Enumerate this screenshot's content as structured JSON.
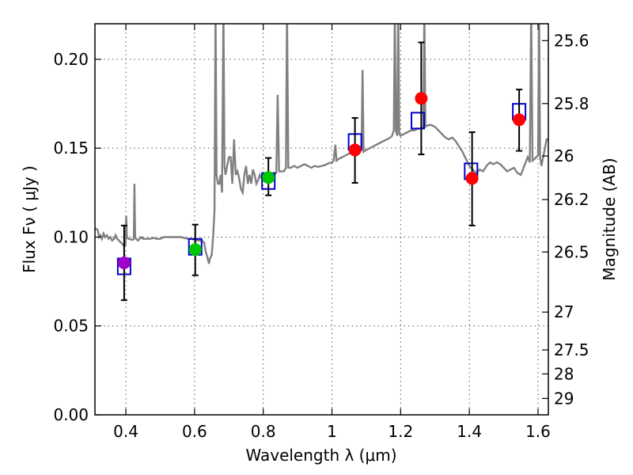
{
  "chart_data": {
    "type": "scatter",
    "xlabel": "Wavelength  λ (μm)",
    "ylabel_left": "Flux  Fν  ( μJy )",
    "ylabel_right": "Magnitude (AB)",
    "xlim": [
      0.31,
      1.63
    ],
    "ylim": [
      0.0,
      0.22
    ],
    "grid": true,
    "x_ticks": [
      {
        "value": 0.4,
        "label": "0.4"
      },
      {
        "value": 0.6,
        "label": "0.6"
      },
      {
        "value": 0.8,
        "label": "0.8"
      },
      {
        "value": 1.0,
        "label": "1"
      },
      {
        "value": 1.2,
        "label": "1.2"
      },
      {
        "value": 1.4,
        "label": "1.4"
      },
      {
        "value": 1.6,
        "label": "1.6"
      }
    ],
    "y_ticks": [
      {
        "value": 0.0,
        "label": "0.00"
      },
      {
        "value": 0.05,
        "label": "0.05"
      },
      {
        "value": 0.1,
        "label": "0.10"
      },
      {
        "value": 0.15,
        "label": "0.15"
      },
      {
        "value": 0.2,
        "label": "0.20"
      }
    ],
    "mag_ticks": [
      {
        "value": 0.2105,
        "label": "25.6"
      },
      {
        "value": 0.1751,
        "label": "25.8"
      },
      {
        "value": 0.1456,
        "label": "26"
      },
      {
        "value": 0.1211,
        "label": "26.2"
      },
      {
        "value": 0.0916,
        "label": "26.5"
      },
      {
        "value": 0.0578,
        "label": "27"
      },
      {
        "value": 0.0365,
        "label": "27.5"
      },
      {
        "value": 0.023,
        "label": "28"
      },
      {
        "value": 0.0092,
        "label": "29"
      }
    ],
    "observed": [
      {
        "x": 0.395,
        "y": 0.0855,
        "yerr_low": 0.0645,
        "yerr_high": 0.1065,
        "color": "#a000c8"
      },
      {
        "x": 0.602,
        "y": 0.093,
        "yerr_low": 0.0785,
        "yerr_high": 0.107,
        "color": "#00c800"
      },
      {
        "x": 0.815,
        "y": 0.1335,
        "yerr_low": 0.1235,
        "yerr_high": 0.1445,
        "color": "#00c800"
      },
      {
        "x": 1.067,
        "y": 0.149,
        "yerr_low": 0.1305,
        "yerr_high": 0.167,
        "color": "#ff0000"
      },
      {
        "x": 1.26,
        "y": 0.178,
        "yerr_low": 0.1465,
        "yerr_high": 0.2095,
        "color": "#ff0000"
      },
      {
        "x": 1.408,
        "y": 0.133,
        "yerr_low": 0.1065,
        "yerr_high": 0.159,
        "color": "#ff0000"
      },
      {
        "x": 1.545,
        "y": 0.166,
        "yerr_low": 0.1485,
        "yerr_high": 0.183,
        "color": "#ff0000"
      }
    ],
    "model_photometry": [
      {
        "x": 0.395,
        "y": 0.0835
      },
      {
        "x": 0.602,
        "y": 0.0945
      },
      {
        "x": 0.815,
        "y": 0.1315
      },
      {
        "x": 1.067,
        "y": 0.1535
      },
      {
        "x": 1.25,
        "y": 0.1655
      },
      {
        "x": 1.405,
        "y": 0.137
      },
      {
        "x": 1.545,
        "y": 0.1705
      }
    ],
    "spectrum": [
      [
        0.31,
        0.105
      ],
      [
        0.318,
        0.104
      ],
      [
        0.322,
        0.1
      ],
      [
        0.326,
        0.101
      ],
      [
        0.33,
        0.099
      ],
      [
        0.335,
        0.102
      ],
      [
        0.34,
        0.1
      ],
      [
        0.345,
        0.101
      ],
      [
        0.35,
        0.099
      ],
      [
        0.355,
        0.1
      ],
      [
        0.36,
        0.098
      ],
      [
        0.366,
        0.099
      ],
      [
        0.37,
        0.101
      ],
      [
        0.375,
        0.099
      ],
      [
        0.38,
        0.098
      ],
      [
        0.385,
        0.097
      ],
      [
        0.39,
        0.096
      ],
      [
        0.395,
        0.095
      ],
      [
        0.399,
        0.0955
      ],
      [
        0.401,
        0.112
      ],
      [
        0.403,
        0.1
      ],
      [
        0.407,
        0.099
      ],
      [
        0.41,
        0.099
      ],
      [
        0.415,
        0.0985
      ],
      [
        0.42,
        0.0985
      ],
      [
        0.423,
        0.099
      ],
      [
        0.425,
        0.13
      ],
      [
        0.427,
        0.1
      ],
      [
        0.43,
        0.099
      ],
      [
        0.435,
        0.098
      ],
      [
        0.44,
        0.099
      ],
      [
        0.445,
        0.1
      ],
      [
        0.45,
        0.099
      ],
      [
        0.46,
        0.099
      ],
      [
        0.47,
        0.099
      ],
      [
        0.48,
        0.0995
      ],
      [
        0.49,
        0.099
      ],
      [
        0.5,
        0.099
      ],
      [
        0.51,
        0.1
      ],
      [
        0.52,
        0.1
      ],
      [
        0.53,
        0.1
      ],
      [
        0.54,
        0.1
      ],
      [
        0.55,
        0.1
      ],
      [
        0.56,
        0.1
      ],
      [
        0.57,
        0.0995
      ],
      [
        0.58,
        0.099
      ],
      [
        0.59,
        0.099
      ],
      [
        0.6,
        0.0985
      ],
      [
        0.61,
        0.098
      ],
      [
        0.62,
        0.098
      ],
      [
        0.628,
        0.097
      ],
      [
        0.632,
        0.092
      ],
      [
        0.637,
        0.089
      ],
      [
        0.642,
        0.085
      ],
      [
        0.645,
        0.088
      ],
      [
        0.65,
        0.09
      ],
      [
        0.654,
        0.1
      ],
      [
        0.658,
        0.115
      ],
      [
        0.661,
        0.23
      ],
      [
        0.664,
        0.135
      ],
      [
        0.668,
        0.13
      ],
      [
        0.672,
        0.13
      ],
      [
        0.676,
        0.135
      ],
      [
        0.68,
        0.125
      ],
      [
        0.684,
        0.23
      ],
      [
        0.687,
        0.14
      ],
      [
        0.69,
        0.135
      ],
      [
        0.695,
        0.14
      ],
      [
        0.7,
        0.145
      ],
      [
        0.705,
        0.145
      ],
      [
        0.71,
        0.13
      ],
      [
        0.715,
        0.155
      ],
      [
        0.72,
        0.135
      ],
      [
        0.725,
        0.137
      ],
      [
        0.73,
        0.133
      ],
      [
        0.735,
        0.127
      ],
      [
        0.74,
        0.125
      ],
      [
        0.745,
        0.135
      ],
      [
        0.75,
        0.14
      ],
      [
        0.755,
        0.13
      ],
      [
        0.76,
        0.135
      ],
      [
        0.765,
        0.13
      ],
      [
        0.77,
        0.138
      ],
      [
        0.775,
        0.135
      ],
      [
        0.78,
        0.13
      ],
      [
        0.785,
        0.132
      ],
      [
        0.79,
        0.135
      ],
      [
        0.795,
        0.133
      ],
      [
        0.8,
        0.133
      ],
      [
        0.81,
        0.132
      ],
      [
        0.82,
        0.135
      ],
      [
        0.83,
        0.136
      ],
      [
        0.838,
        0.136
      ],
      [
        0.842,
        0.18
      ],
      [
        0.846,
        0.137
      ],
      [
        0.85,
        0.137
      ],
      [
        0.86,
        0.137
      ],
      [
        0.866,
        0.139
      ],
      [
        0.869,
        0.23
      ],
      [
        0.873,
        0.139
      ],
      [
        0.88,
        0.139
      ],
      [
        0.89,
        0.14
      ],
      [
        0.9,
        0.139
      ],
      [
        0.91,
        0.14
      ],
      [
        0.92,
        0.141
      ],
      [
        0.93,
        0.14
      ],
      [
        0.94,
        0.139
      ],
      [
        0.95,
        0.14
      ],
      [
        0.96,
        0.1395
      ],
      [
        0.97,
        0.14
      ],
      [
        0.98,
        0.1405
      ],
      [
        0.99,
        0.1415
      ],
      [
        1.0,
        0.142
      ],
      [
        1.005,
        0.143
      ],
      [
        1.01,
        0.152
      ],
      [
        1.013,
        0.143
      ],
      [
        1.02,
        0.144
      ],
      [
        1.03,
        0.145
      ],
      [
        1.04,
        0.146
      ],
      [
        1.05,
        0.147
      ],
      [
        1.055,
        0.147
      ],
      [
        1.06,
        0.148
      ],
      [
        1.07,
        0.147
      ],
      [
        1.08,
        0.148
      ],
      [
        1.086,
        0.149
      ],
      [
        1.089,
        0.194
      ],
      [
        1.092,
        0.148
      ],
      [
        1.1,
        0.149
      ],
      [
        1.11,
        0.15
      ],
      [
        1.12,
        0.151
      ],
      [
        1.13,
        0.152
      ],
      [
        1.14,
        0.153
      ],
      [
        1.15,
        0.154
      ],
      [
        1.16,
        0.155
      ],
      [
        1.17,
        0.156
      ],
      [
        1.175,
        0.157
      ],
      [
        1.18,
        0.16
      ],
      [
        1.183,
        0.23
      ],
      [
        1.186,
        0.16
      ],
      [
        1.19,
        0.157
      ],
      [
        1.193,
        0.23
      ],
      [
        1.196,
        0.158
      ],
      [
        1.2,
        0.157
      ],
      [
        1.21,
        0.158
      ],
      [
        1.22,
        0.159
      ],
      [
        1.23,
        0.16
      ],
      [
        1.24,
        0.16
      ],
      [
        1.25,
        0.161
      ],
      [
        1.26,
        0.161
      ],
      [
        1.266,
        0.162
      ],
      [
        1.269,
        0.23
      ],
      [
        1.272,
        0.162
      ],
      [
        1.28,
        0.163
      ],
      [
        1.29,
        0.163
      ],
      [
        1.3,
        0.162
      ],
      [
        1.31,
        0.16
      ],
      [
        1.32,
        0.158
      ],
      [
        1.33,
        0.156
      ],
      [
        1.34,
        0.155
      ],
      [
        1.35,
        0.156
      ],
      [
        1.36,
        0.154
      ],
      [
        1.37,
        0.151
      ],
      [
        1.38,
        0.148
      ],
      [
        1.39,
        0.144
      ],
      [
        1.4,
        0.14
      ],
      [
        1.41,
        0.138
      ],
      [
        1.42,
        0.136
      ],
      [
        1.43,
        0.138
      ],
      [
        1.44,
        0.137
      ],
      [
        1.45,
        0.14
      ],
      [
        1.46,
        0.142
      ],
      [
        1.47,
        0.141
      ],
      [
        1.48,
        0.142
      ],
      [
        1.49,
        0.141
      ],
      [
        1.5,
        0.139
      ],
      [
        1.51,
        0.137
      ],
      [
        1.52,
        0.138
      ],
      [
        1.53,
        0.139
      ],
      [
        1.54,
        0.136
      ],
      [
        1.55,
        0.135
      ],
      [
        1.56,
        0.14
      ],
      [
        1.57,
        0.145
      ],
      [
        1.576,
        0.142
      ],
      [
        1.58,
        0.23
      ],
      [
        1.584,
        0.143
      ],
      [
        1.59,
        0.144
      ],
      [
        1.6,
        0.146
      ],
      [
        1.603,
        0.23
      ],
      [
        1.606,
        0.145
      ],
      [
        1.61,
        0.14
      ],
      [
        1.615,
        0.145
      ],
      [
        1.62,
        0.15
      ],
      [
        1.625,
        0.155
      ],
      [
        1.63,
        0.155
      ]
    ]
  }
}
